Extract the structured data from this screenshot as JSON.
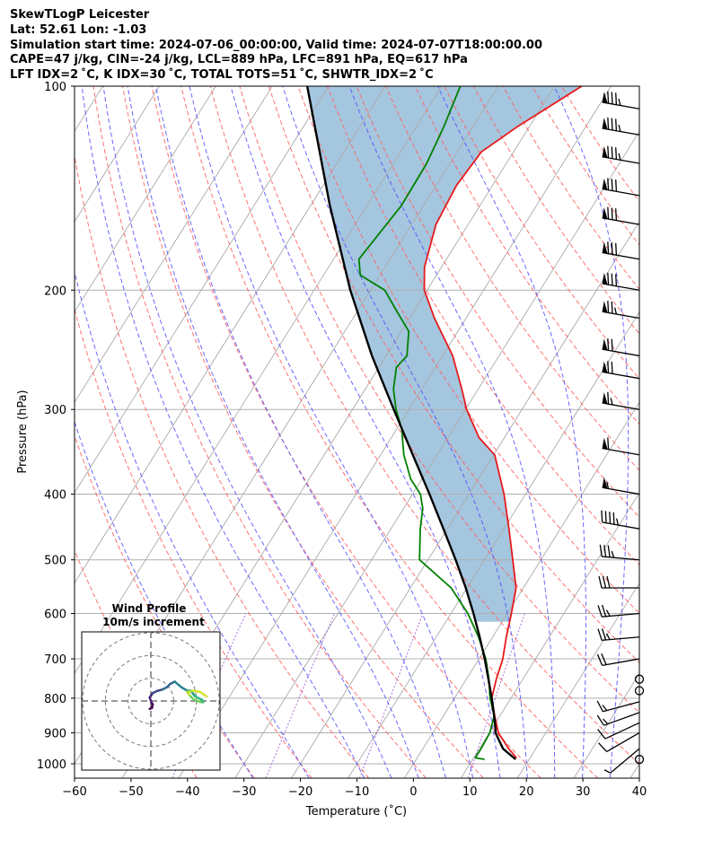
{
  "header": {
    "line1": "SkewTLogP Leicester",
    "line2": "Lat: 52.61   Lon: -1.03",
    "line3": "Simulation start time: 2024-07-06_00:00:00, Valid time: 2024-07-07T18:00:00.00",
    "line4": "CAPE=47 j/kg, CIN=-24 j/kg, LCL=889 hPa, LFC=891 hPa, EQ=617 hPa",
    "line5": "LFT IDX=2 ˚C, K IDX=30 ˚C, TOTAL TOTS=51 ˚C, SHWTR_IDX=2 ˚C"
  },
  "chart_data": {
    "type": "skewt",
    "xlabel": "Temperature (˚C)",
    "ylabel": "Pressure (hPa)",
    "xlim": [
      -60,
      40
    ],
    "ylim": [
      1050,
      100
    ],
    "skew_deg_per_decade": 75,
    "x_ticks": [
      -60,
      -50,
      -40,
      -30,
      -20,
      -10,
      0,
      10,
      20,
      30,
      40
    ],
    "x_tick_labels": [
      "−60",
      "−50",
      "−40",
      "−30",
      "−20",
      "−10",
      "0",
      "10",
      "20",
      "30",
      "40"
    ],
    "y_ticks": [
      1000,
      900,
      800,
      700,
      600,
      500,
      400,
      300,
      200,
      100
    ],
    "y_tick_labels": [
      "1000",
      "900",
      "800",
      "700",
      "600",
      "500",
      "400",
      "300",
      "200",
      "100"
    ],
    "isotherms": [
      -140,
      -130,
      -120,
      -110,
      -100,
      -90,
      -80,
      -70,
      -60,
      -50,
      -40,
      -30,
      -20,
      -10,
      0,
      10,
      20,
      30,
      40
    ],
    "dry_adiabats_theta_c": [
      -40,
      -30,
      -20,
      -10,
      0,
      10,
      20,
      30,
      40,
      50,
      60,
      70,
      80,
      90,
      100,
      110,
      120,
      130,
      140,
      150,
      160
    ],
    "moist_adiabats_t1000_c": [
      -30,
      -20,
      -10,
      -5,
      0,
      5,
      10,
      15,
      20,
      25,
      30,
      35
    ],
    "mixing_ratio_lines": [
      0.1,
      0.5,
      2,
      8
    ],
    "series": [
      {
        "name": "Temperature",
        "color": "#e8191c",
        "p": [
          980,
          950,
          900,
          850,
          800,
          750,
          700,
          650,
          600,
          550,
          500,
          450,
          400,
          350,
          330,
          300,
          280,
          250,
          220,
          200,
          185,
          160,
          140,
          125,
          115,
          100
        ],
        "t": [
          17.6,
          15.2,
          11.6,
          9.1,
          6.6,
          5.3,
          4.2,
          2.4,
          0.7,
          -1.3,
          -5.0,
          -9.1,
          -13.8,
          -19.8,
          -24.5,
          -29.8,
          -32.9,
          -38.2,
          -45.6,
          -50.5,
          -53.0,
          -55.7,
          -56.4,
          -55.7,
          -52.2,
          -45.2
        ]
      },
      {
        "name": "Dewpoint",
        "color": "#008000",
        "p": [
          985,
          980,
          950,
          900,
          850,
          800,
          750,
          700,
          650,
          600,
          550,
          500,
          450,
          420,
          400,
          380,
          350,
          320,
          300,
          280,
          260,
          250,
          230,
          215,
          200,
          190,
          180,
          150,
          130,
          115,
          100
        ],
        "t": [
          12.1,
          10.3,
          10.3,
          10.1,
          9.0,
          6.3,
          4.0,
          1.2,
          -2.5,
          -7.0,
          -12.8,
          -21.5,
          -24.8,
          -26.6,
          -28.6,
          -32.0,
          -35.9,
          -39.2,
          -42.3,
          -45.0,
          -46.9,
          -46.3,
          -48.7,
          -53.0,
          -57.5,
          -63.5,
          -65.5,
          -63.9,
          -64.1,
          -65.1,
          -66.7
        ]
      },
      {
        "name": "Parcel",
        "color": "#000000",
        "p": [
          985,
          950,
          900,
          889,
          850,
          800,
          750,
          700,
          650,
          600,
          550,
          500,
          450,
          400,
          350,
          300,
          250,
          200,
          150,
          100
        ],
        "t": [
          17.6,
          14.2,
          11.1,
          10.7,
          9.0,
          6.6,
          3.9,
          1.0,
          -2.3,
          -6.0,
          -10.2,
          -15.1,
          -20.7,
          -27.0,
          -34.3,
          -42.7,
          -52.5,
          -63.6,
          -76.6,
          -93.8
        ]
      }
    ],
    "cape_fill": {
      "color": "#a5c6df",
      "p_bottom": 617,
      "p_top": 100
    },
    "wind_barbs": {
      "p": [
        985,
        950,
        900,
        870,
        840,
        810,
        780,
        750,
        700,
        650,
        600,
        550,
        500,
        450,
        400,
        350,
        300,
        270,
        250,
        220,
        200,
        180,
        160,
        145,
        130,
        118,
        108
      ],
      "speed_kt": [
        0,
        8,
        12,
        14,
        16,
        18,
        0,
        0,
        22,
        25,
        25,
        30,
        35,
        45,
        55,
        60,
        65,
        70,
        70,
        75,
        80,
        80,
        80,
        80,
        85,
        85,
        85
      ],
      "dir_deg": [
        0,
        230,
        240,
        245,
        250,
        255,
        0,
        0,
        260,
        265,
        265,
        270,
        275,
        280,
        280,
        280,
        280,
        280,
        280,
        280,
        280,
        280,
        280,
        280,
        280,
        280,
        280
      ]
    },
    "hodograph": {
      "title": "Wind Profile",
      "subtitle": "10m/s increment",
      "ring_step_ms": 10,
      "range_ms": 30,
      "u": [
        -0.5,
        0.5,
        0.8,
        0.2,
        -0.5,
        0.8,
        3.0,
        5.0,
        7.0,
        8.5,
        10.5,
        13.5,
        16.0,
        17.5,
        19.5,
        22.5,
        23.0,
        22.0,
        19.0,
        17.0,
        16.0,
        19.0,
        21.5,
        24.5
      ],
      "v": [
        -3.5,
        -3.0,
        -1.5,
        -0.5,
        1.5,
        3.5,
        4.5,
        5.0,
        6.0,
        7.5,
        8.5,
        6.0,
        4.5,
        4.5,
        2.0,
        0.5,
        -0.5,
        -0.5,
        0.5,
        2.5,
        4.0,
        4.5,
        4.0,
        2.0
      ]
    }
  }
}
